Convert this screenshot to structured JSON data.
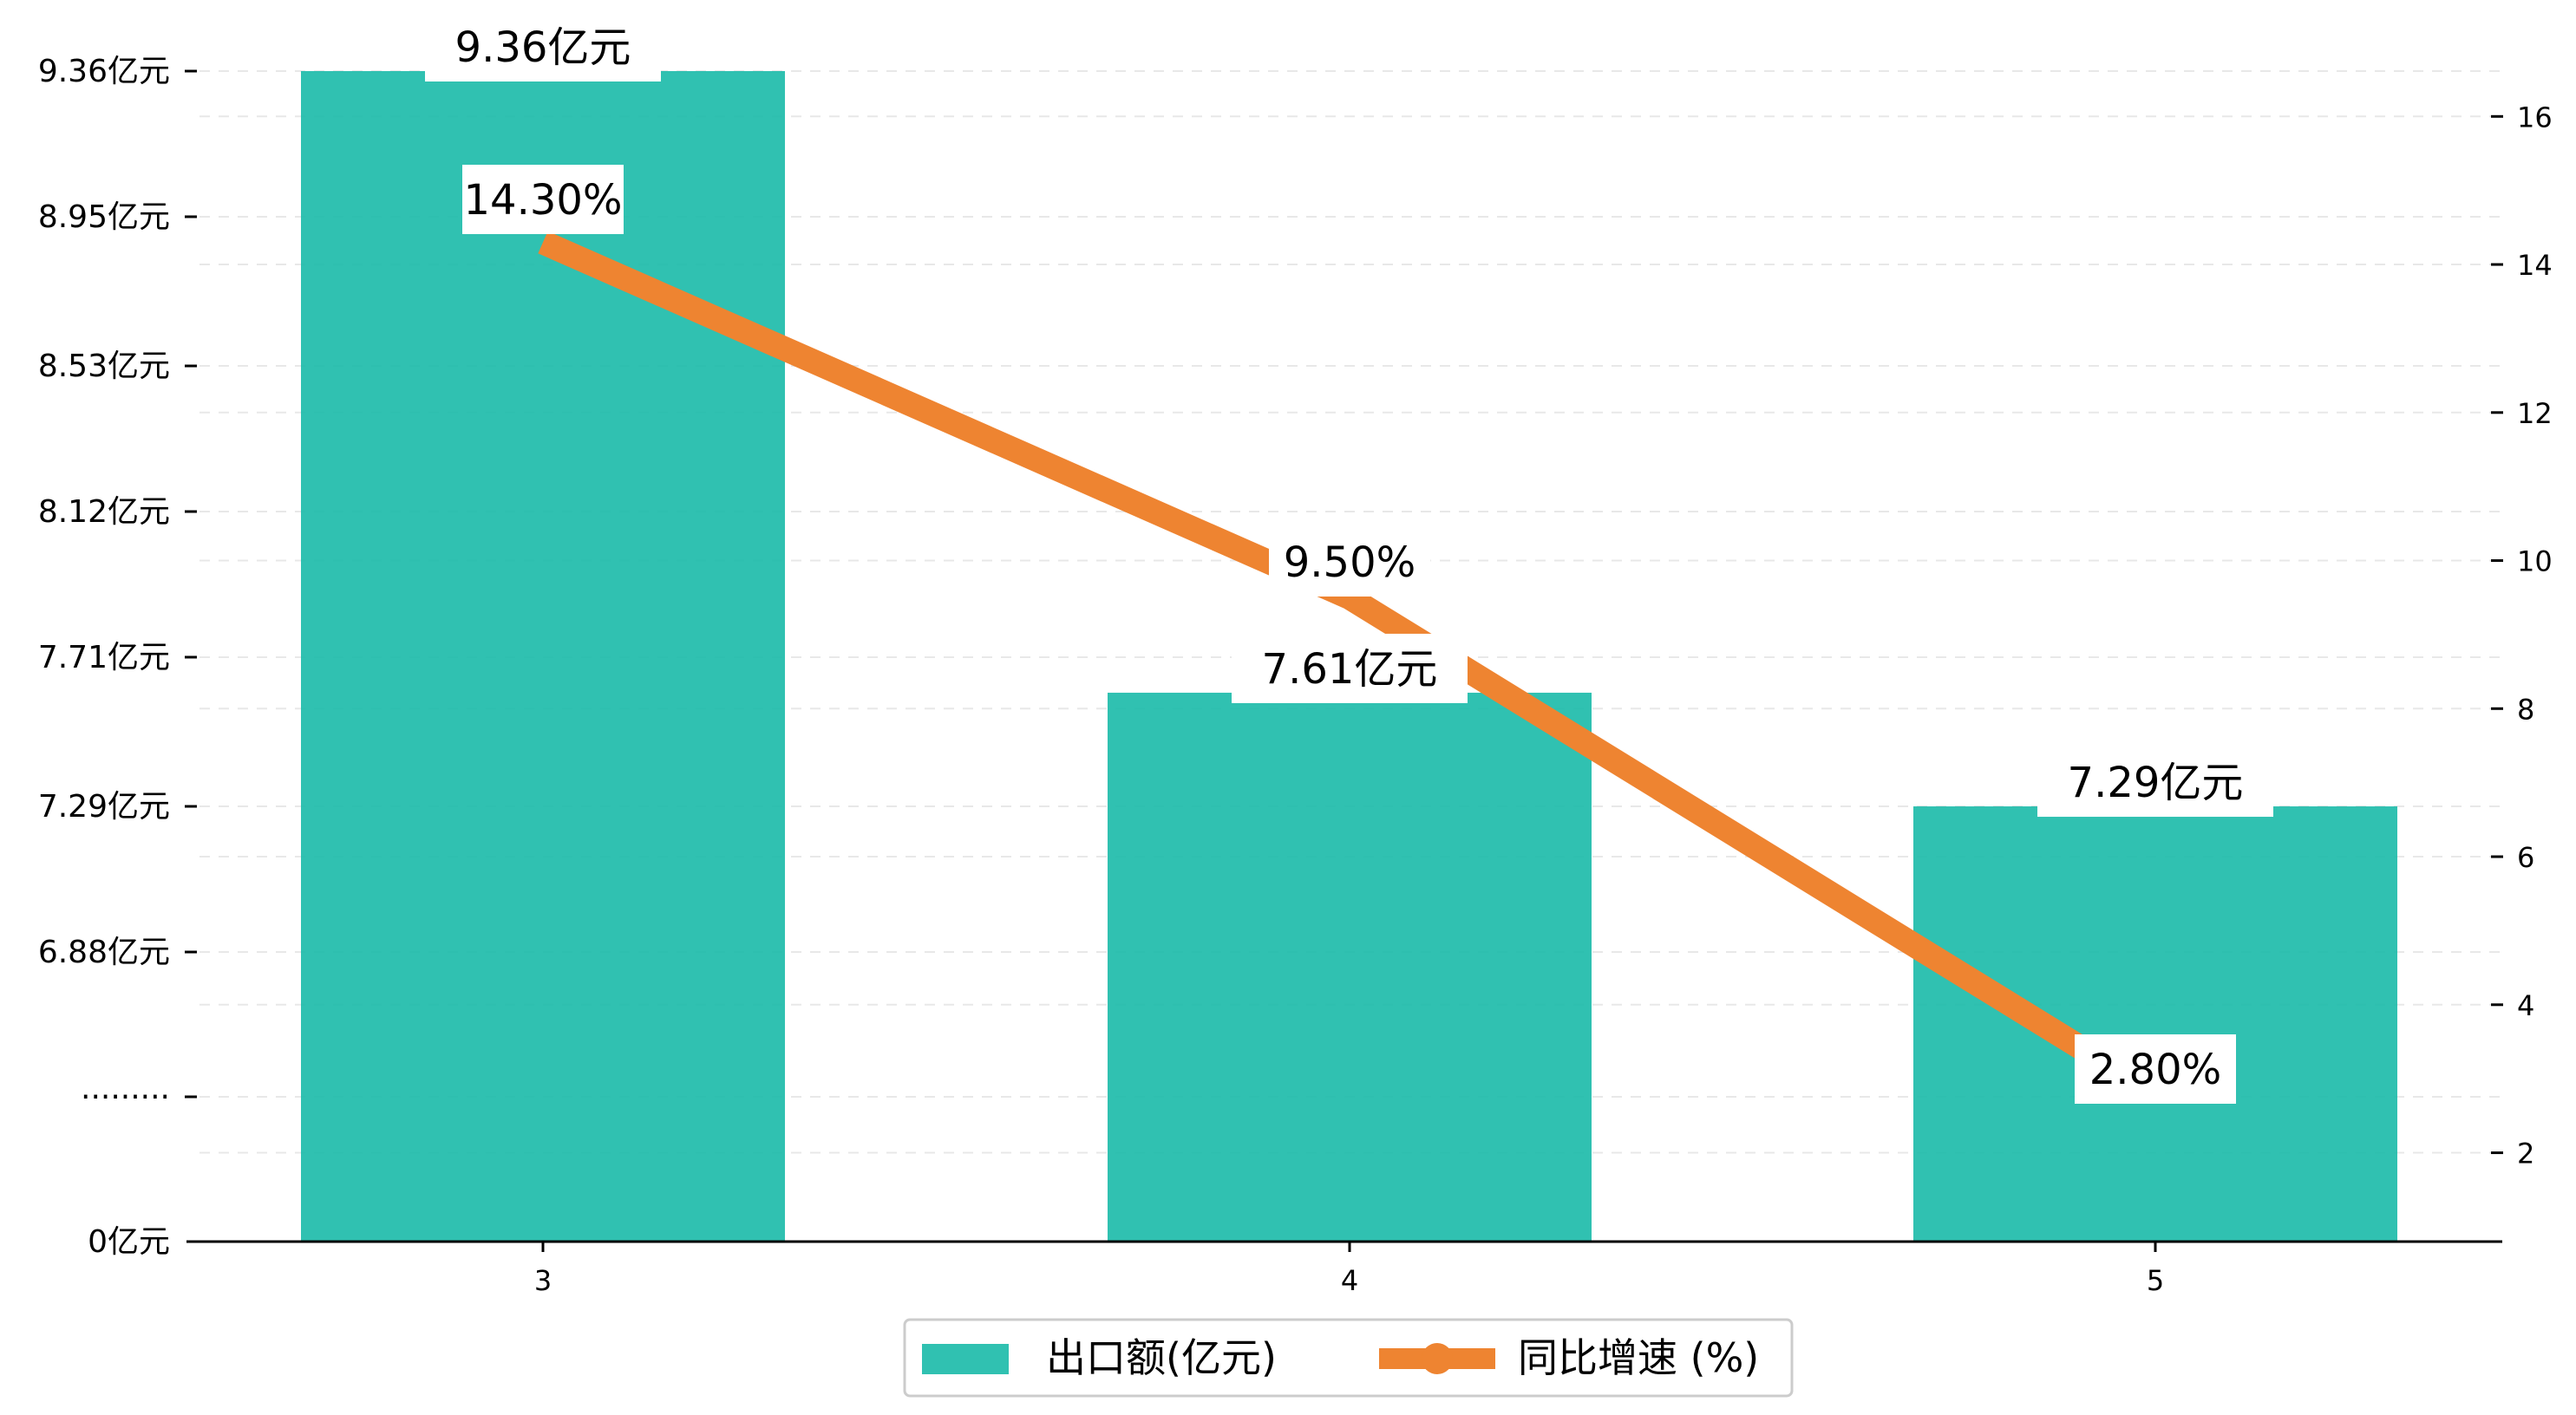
{
  "chart_data": {
    "type": "bar",
    "categories": [
      "3",
      "4",
      "5"
    ],
    "series": [
      {
        "name": "出口额(亿元)",
        "type": "bar",
        "axis": "left",
        "values": [
          9.36,
          7.61,
          7.29
        ],
        "labels": [
          "9.36亿元",
          "7.61亿元",
          "7.29亿元"
        ],
        "color": "#1ABAA8"
      },
      {
        "name": "同比增速 (%)",
        "type": "line",
        "axis": "right",
        "values": [
          14.3,
          9.5,
          2.8
        ],
        "labels": [
          "14.30%",
          "9.50%",
          "2.80%"
        ],
        "color": "#EE8431"
      }
    ],
    "y_left": {
      "broken_axis": true,
      "tick_labels": [
        "0亿元",
        "·········",
        "6.88亿元",
        "7.29亿元",
        "7.71亿元",
        "8.12亿元",
        "8.53亿元",
        "8.95亿元",
        "9.36亿元"
      ],
      "tick_values": [
        0,
        null,
        6.88,
        7.29,
        7.71,
        8.12,
        8.53,
        8.95,
        9.36
      ]
    },
    "y_right": {
      "ylim": [
        0.8,
        16.8
      ],
      "ticks": [
        2,
        4,
        6,
        8,
        10,
        12,
        14,
        16
      ]
    },
    "grid": "horizontal dashed",
    "legend": "bottom-center"
  }
}
